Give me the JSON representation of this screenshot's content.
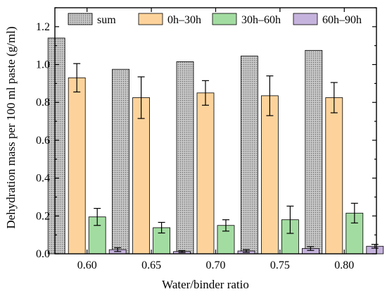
{
  "chart_data": {
    "type": "bar",
    "xlabel": "Water/binder ratio",
    "ylabel": "Dehydration mass per 100 ml paste (g/ml)",
    "ylim": [
      0,
      1.3
    ],
    "yticks": [
      "0.0",
      "0.2",
      "0.4",
      "0.6",
      "0.8",
      "1.0",
      "1.2"
    ],
    "categories": [
      "0.60",
      "0.65",
      "0.70",
      "0.75",
      "0.80"
    ],
    "legend_position": "top",
    "series": [
      {
        "name": "sum",
        "color": "#c8c8c8",
        "pattern": "dots",
        "values": [
          1.14,
          0.975,
          1.015,
          1.045,
          1.075
        ]
      },
      {
        "name": "0h–30h",
        "color": "#fdd39b",
        "values": [
          0.93,
          0.825,
          0.85,
          0.835,
          0.825
        ],
        "errors": [
          0.075,
          0.11,
          0.065,
          0.105,
          0.08
        ]
      },
      {
        "name": "30h–60h",
        "color": "#a3dca1",
        "values": [
          0.195,
          0.138,
          0.15,
          0.18,
          0.215
        ],
        "errors": [
          0.045,
          0.028,
          0.03,
          0.072,
          0.052
        ]
      },
      {
        "name": "60h–90h",
        "color": "#c6b3dd",
        "values": [
          0.022,
          0.012,
          0.015,
          0.028,
          0.04
        ],
        "errors": [
          0.01,
          0.005,
          0.007,
          0.01,
          0.01
        ]
      }
    ]
  }
}
